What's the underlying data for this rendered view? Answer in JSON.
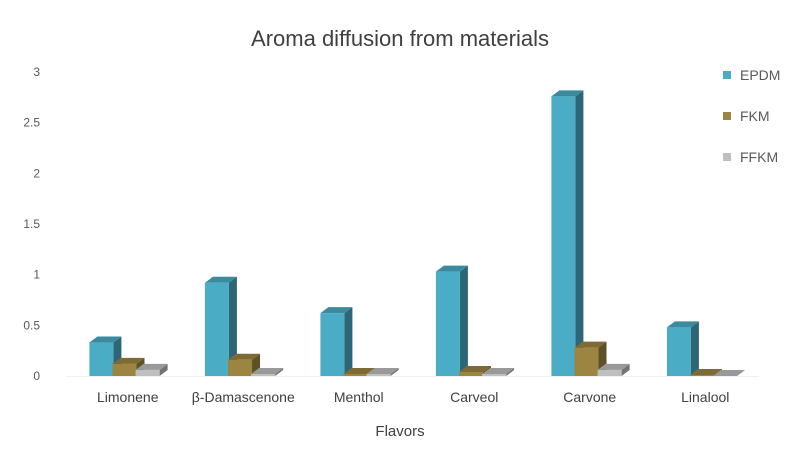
{
  "chart_data": {
    "type": "bar",
    "title": "Aroma diffusion from materials",
    "xlabel": "Flavors",
    "ylabel": "",
    "categories": [
      "Limonene",
      "β-Damascenone",
      "Menthol",
      "Carveol",
      "Carvone",
      "Linalool"
    ],
    "series": [
      {
        "name": "EPDM",
        "values": [
          0.33,
          0.92,
          0.62,
          1.03,
          2.76,
          0.48
        ],
        "color": "#4BACC6"
      },
      {
        "name": "FKM",
        "values": [
          0.12,
          0.16,
          0.02,
          0.04,
          0.28,
          0.01
        ],
        "color": "#9C8541"
      },
      {
        "name": "FFKM",
        "values": [
          0.06,
          0.02,
          0.02,
          0.02,
          0.06,
          0.0
        ],
        "color": "#BFBFBF"
      }
    ],
    "ylim": [
      0,
      3
    ],
    "yticks": [
      "0",
      "0.5",
      "1",
      "1.5",
      "2",
      "2.5",
      "3"
    ],
    "grid": false,
    "legend_position": "right",
    "style": "3d-clustered-column"
  }
}
